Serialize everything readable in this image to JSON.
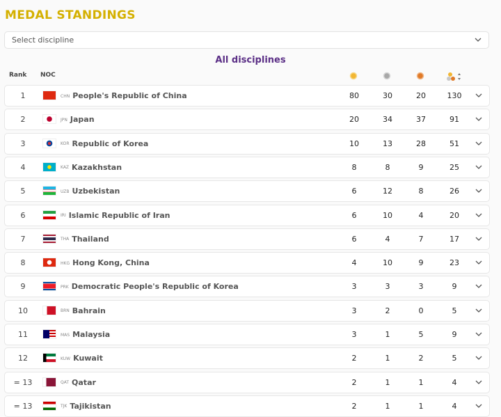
{
  "header": {
    "title": "MEDAL STANDINGS"
  },
  "filter": {
    "placeholder": "Select discipline"
  },
  "table": {
    "subtitle": "All disciplines",
    "columns": {
      "rank": "Rank",
      "noc": "NOC"
    },
    "rows": [
      {
        "rank": 1,
        "code": "CHN",
        "name": "People's Republic of China",
        "gold": 80,
        "silver": 30,
        "bronze": 20,
        "total": 130
      },
      {
        "rank": 2,
        "code": "JPN",
        "name": "Japan",
        "gold": 20,
        "silver": 34,
        "bronze": 37,
        "total": 91
      },
      {
        "rank": 3,
        "code": "KOR",
        "name": "Republic of Korea",
        "gold": 10,
        "silver": 13,
        "bronze": 28,
        "total": 51
      },
      {
        "rank": 4,
        "code": "KAZ",
        "name": "Kazakhstan",
        "gold": 8,
        "silver": 8,
        "bronze": 9,
        "total": 25
      },
      {
        "rank": 5,
        "code": "UZB",
        "name": "Uzbekistan",
        "gold": 6,
        "silver": 12,
        "bronze": 8,
        "total": 26
      },
      {
        "rank": 6,
        "code": "IRI",
        "name": "Islamic Republic of Iran",
        "gold": 6,
        "silver": 10,
        "bronze": 4,
        "total": 20
      },
      {
        "rank": 7,
        "code": "THA",
        "name": "Thailand",
        "gold": 6,
        "silver": 4,
        "bronze": 7,
        "total": 17
      },
      {
        "rank": 8,
        "code": "HKG",
        "name": "Hong Kong, China",
        "gold": 4,
        "silver": 10,
        "bronze": 9,
        "total": 23
      },
      {
        "rank": 9,
        "code": "PRK",
        "name": "Democratic People's Republic of Korea",
        "gold": 3,
        "silver": 3,
        "bronze": 3,
        "total": 9
      },
      {
        "rank": 10,
        "code": "BRN",
        "name": "Bahrain",
        "gold": 3,
        "silver": 2,
        "bronze": 0,
        "total": 5
      },
      {
        "rank": 11,
        "code": "MAS",
        "name": "Malaysia",
        "gold": 3,
        "silver": 1,
        "bronze": 5,
        "total": 9
      },
      {
        "rank": 12,
        "code": "KUW",
        "name": "Kuwait",
        "gold": 2,
        "silver": 1,
        "bronze": 2,
        "total": 5
      },
      {
        "rank": "= 13",
        "code": "QAT",
        "name": "Qatar",
        "gold": 2,
        "silver": 1,
        "bronze": 1,
        "total": 4
      },
      {
        "rank": "= 13",
        "code": "TJK",
        "name": "Tajikistan",
        "gold": 2,
        "silver": 1,
        "bronze": 1,
        "total": 4
      }
    ]
  }
}
